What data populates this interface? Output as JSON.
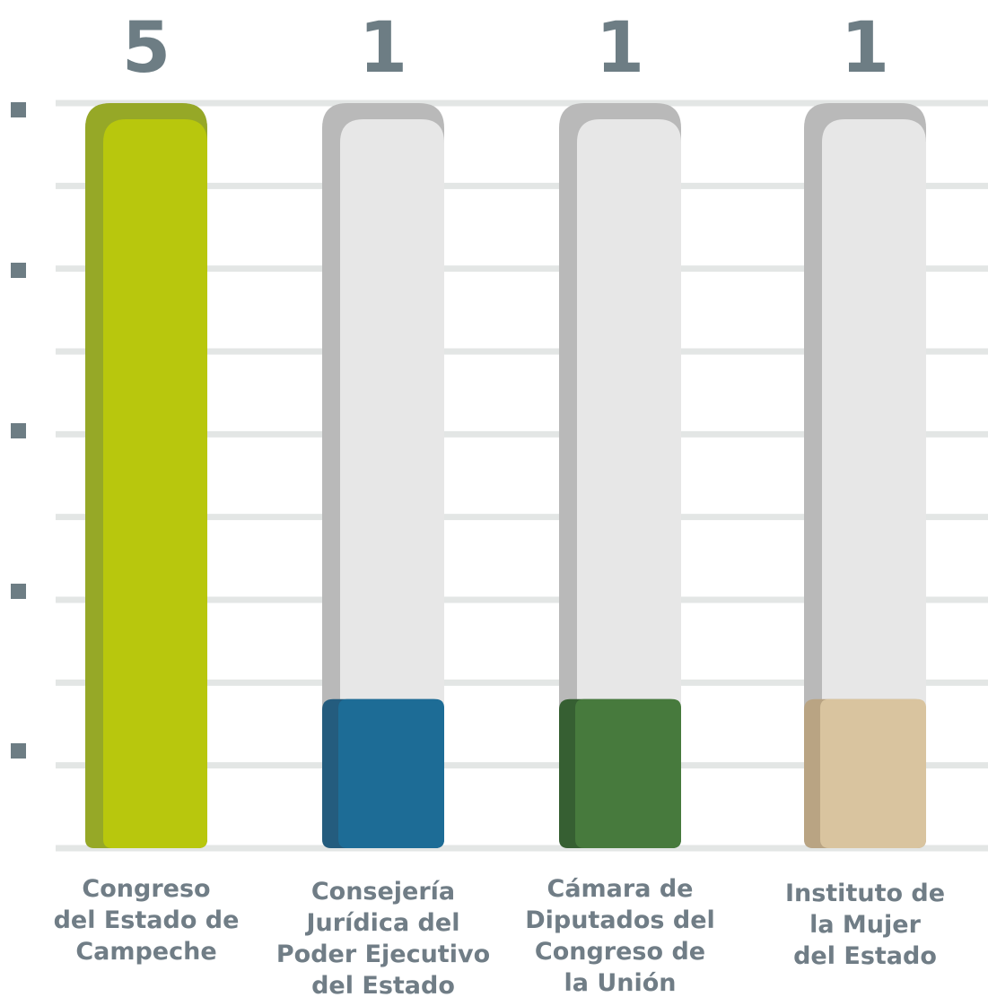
{
  "chart_data": {
    "type": "bar",
    "categories": [
      [
        "Congreso",
        "del Estado de",
        "Campeche"
      ],
      [
        "Consejería",
        "Jurídica del",
        "Poder Ejecutivo",
        "del Estado"
      ],
      [
        "Cámara de",
        "Diputados del",
        "Congreso de",
        "la Unión"
      ],
      [
        "Instituto de",
        "la Mujer",
        "del Estado"
      ]
    ],
    "values": [
      5,
      1,
      1,
      1
    ],
    "value_labels": [
      "5",
      "1",
      "1",
      "1"
    ],
    "ylim": [
      0,
      5
    ],
    "grid": true,
    "colors": {
      "bars": [
        "#b8c70d",
        "#1d6c96",
        "#477a3d",
        "#d9c49f"
      ],
      "bar_shade": [
        "#96a827",
        "#245c7e",
        "#365f32",
        "#b9a483"
      ],
      "track": "#e7e7e7",
      "track_shade": "#b9b9b9",
      "grid": "#e3e6e5",
      "tick": "#6d7d84",
      "text": "#707d86"
    }
  }
}
